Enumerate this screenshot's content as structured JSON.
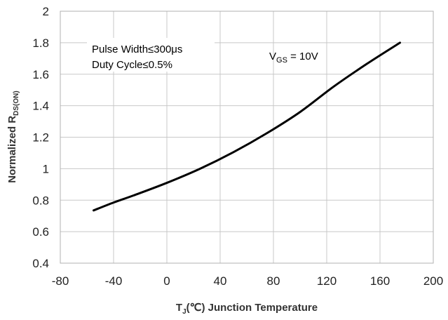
{
  "chart_data": {
    "type": "line",
    "title": "",
    "xlabel": {
      "main": "T",
      "sub": "J",
      "rest": "(℃) Junction Temperature"
    },
    "ylabel": {
      "main": "Normalized R",
      "sub": "DS(ON)"
    },
    "xlim": [
      -80,
      200
    ],
    "ylim": [
      0.4,
      2
    ],
    "x_ticks": [
      -80,
      -40,
      0,
      40,
      80,
      120,
      160,
      200
    ],
    "y_ticks": [
      0.4,
      0.6,
      0.8,
      1,
      1.2,
      1.4,
      1.6,
      1.8,
      2
    ],
    "x_tick_labels": [
      "-80",
      "-40",
      "0",
      "40",
      "80",
      "120",
      "160",
      "200"
    ],
    "y_tick_labels": [
      "0.4",
      "0.6",
      "0.8",
      "1",
      "1.2",
      "1.4",
      "1.6",
      "1.8",
      "2"
    ],
    "grid": true,
    "series": [
      {
        "name": "VGS = 10V",
        "color": "#000000",
        "x": [
          -55,
          -40,
          -25,
          0,
          25,
          50,
          75,
          100,
          125,
          150,
          175
        ],
        "y": [
          0.735,
          0.785,
          0.83,
          0.91,
          1.0,
          1.105,
          1.225,
          1.36,
          1.52,
          1.665,
          1.8
        ]
      }
    ],
    "annotations": {
      "box_line1": "Pulse Width≤300μs",
      "box_line2": "Duty Cycle≤0.5%",
      "vgs_main": "V",
      "vgs_sub": "GS",
      "vgs_rest": " = 10V"
    }
  }
}
